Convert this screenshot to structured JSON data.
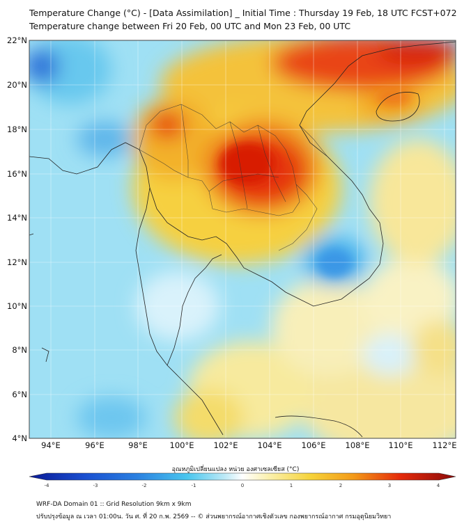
{
  "header": {
    "title_line1": "Temperature Change (°C) - [Data Assimilation] _ Initial Time : Thursday 19 Feb, 18 UTC FCST+072",
    "title_line2": "Temperature change between Fri 20 Feb, 00 UTC and Mon 23 Feb, 00 UTC"
  },
  "map": {
    "lon_ticks": [
      "94°E",
      "96°E",
      "98°E",
      "100°E",
      "102°E",
      "104°E",
      "106°E",
      "108°E",
      "110°E",
      "112°E"
    ],
    "lat_ticks": [
      "22°N",
      "20°N",
      "18°N",
      "16°N",
      "14°N",
      "12°N",
      "10°N",
      "8°N",
      "6°N",
      "4°N"
    ]
  },
  "colorbar": {
    "label": "อุณหภูมิเปลี่ยนแปลง หน่วย องศาเซลเซียส (°C)",
    "ticks": [
      "-4",
      "-3",
      "-2",
      "-1",
      "0",
      "1",
      "2",
      "3",
      "4"
    ],
    "colors": {
      "deep_blue": "#0a1a96",
      "blue": "#2a7fe0",
      "cyan": "#49c6ee",
      "light_cyan": "#bfeaf7",
      "white": "#ffffff",
      "light_yellow": "#fbf1b0",
      "yellow": "#f6d33a",
      "orange": "#f39a18",
      "red": "#e42a0a",
      "dark_red": "#8a0a0a"
    }
  },
  "footer": {
    "line1": "WRF-DA Domain 01 :: Grid Resolution 9km x 9km",
    "line2": "ปรับปรุงข้อมูล ณ เวลา 01:00น. วัน ศ. ที่ 20 ก.พ. 2569 -- © ส่วนพยากรณ์อากาศเชิงตัวเลข กองพยากรณ์อากาศ กรมอุตุนิยมวิทยา"
  }
}
